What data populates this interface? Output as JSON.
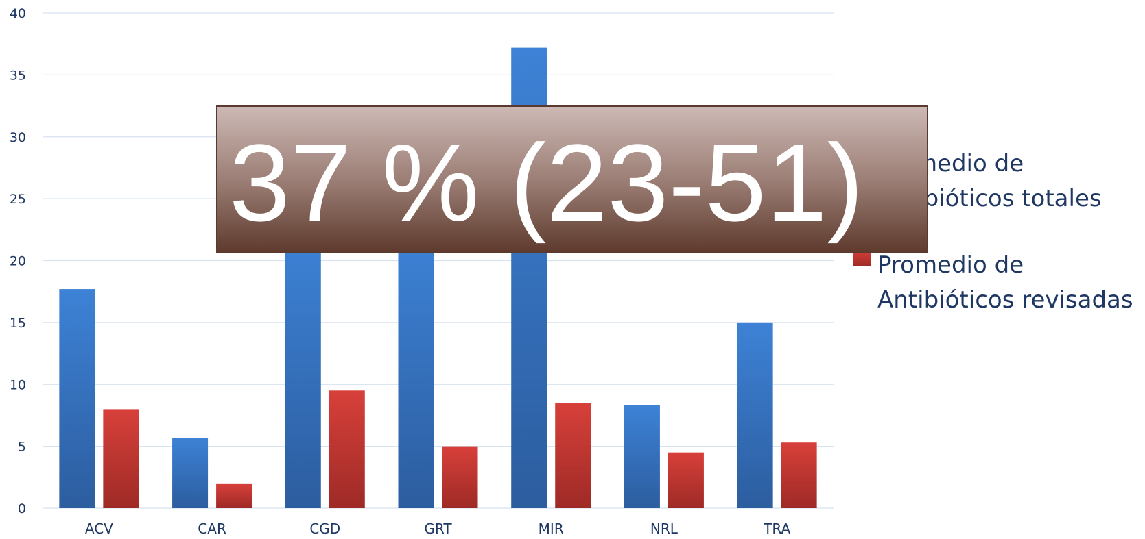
{
  "chart_data": {
    "type": "bar",
    "categories": [
      "ACV",
      "CAR",
      "CGD",
      "GRT",
      "MIR",
      "NRL",
      "TRA"
    ],
    "series": [
      {
        "name": "Promedio de Antibióticos totales",
        "values": [
          17.7,
          5.7,
          22,
          22,
          37.2,
          8.3,
          15
        ],
        "color": "#3a78c9"
      },
      {
        "name": "Promedio de Antibióticos revisadas",
        "values": [
          8,
          2,
          9.5,
          5,
          8.5,
          4.5,
          5.3
        ],
        "color": "#c9302c"
      }
    ],
    "ylim": [
      0,
      40
    ],
    "yticks": [
      0,
      5,
      10,
      15,
      20,
      25,
      30,
      35,
      40
    ],
    "grid": true,
    "legend_position": "right",
    "legend": [
      {
        "lines": [
          "Promedio de",
          "Antibióticos totales"
        ],
        "color": "#3a78c9"
      },
      {
        "lines": [
          "Promedio de",
          "Antibióticos revisadas"
        ],
        "color": "#c9302c"
      }
    ],
    "annotation": "37 % (23-51)"
  }
}
